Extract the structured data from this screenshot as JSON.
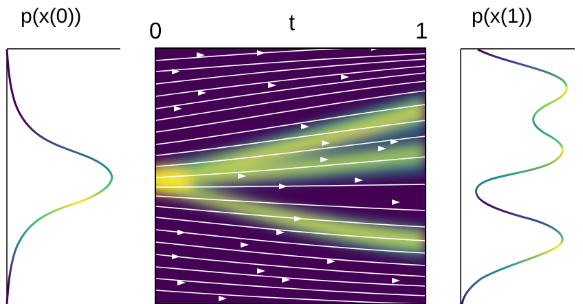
{
  "left_panel": {
    "title": "p(x(0))"
  },
  "right_panel": {
    "title": "p(x(1))"
  },
  "center_panel": {
    "x_axis_label": "t",
    "x_start_tick": "0",
    "x_end_tick": "1",
    "colormap": [
      "#440154",
      "#3b528b",
      "#21918c",
      "#5ec962",
      "#fde725"
    ]
  },
  "initial_density": {
    "description": "single gaussian mode",
    "modes": [
      {
        "mean": 0.0,
        "std": 1.0
      }
    ]
  },
  "final_density": {
    "description": "three gaussian modes",
    "modes": [
      {
        "mean": -1.6,
        "std": 0.45
      },
      {
        "mean": 0.4,
        "std": 0.45
      },
      {
        "mean": 1.8,
        "std": 0.45
      }
    ]
  }
}
